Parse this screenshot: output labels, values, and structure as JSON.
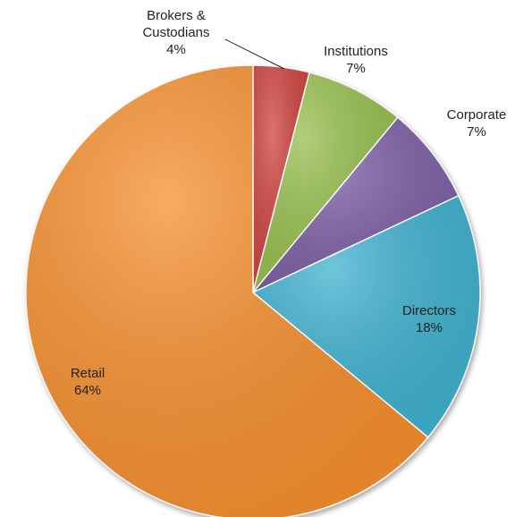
{
  "chart_data": {
    "type": "pie",
    "categories": [
      "Brokers & Custodians",
      "Institutions",
      "Corporate",
      "Directors",
      "Retail"
    ],
    "values": [
      4,
      7,
      7,
      18,
      64
    ],
    "value_labels": [
      "4%",
      "7%",
      "7%",
      "18%",
      "64%"
    ],
    "colors": [
      "#cf4440",
      "#98c04f",
      "#7e60a6",
      "#3fb2d0",
      "#f7902f"
    ]
  }
}
